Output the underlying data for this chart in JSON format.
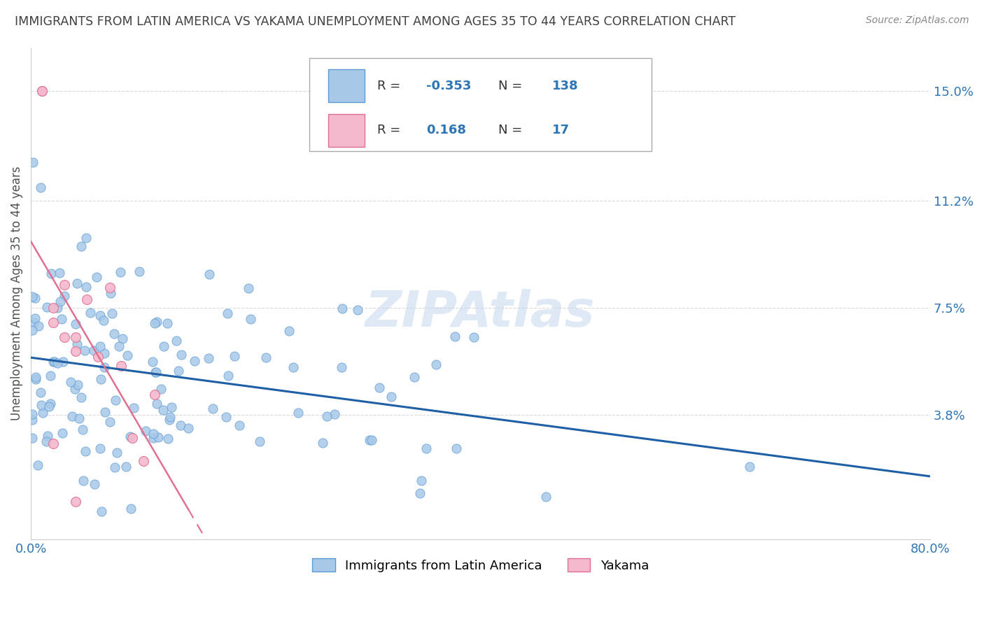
{
  "title": "IMMIGRANTS FROM LATIN AMERICA VS YAKAMA UNEMPLOYMENT AMONG AGES 35 TO 44 YEARS CORRELATION CHART",
  "source": "Source: ZipAtlas.com",
  "ylabel": "Unemployment Among Ages 35 to 44 years",
  "legend_label_1": "Immigrants from Latin America",
  "legend_label_2": "Yakama",
  "R1": -0.353,
  "N1": 138,
  "R2": 0.168,
  "N2": 17,
  "xlim": [
    0.0,
    0.8
  ],
  "ylim": [
    -0.005,
    0.165
  ],
  "yticks": [
    0.038,
    0.075,
    0.112,
    0.15
  ],
  "ytick_labels": [
    "3.8%",
    "7.5%",
    "11.2%",
    "15.0%"
  ],
  "color_blue": "#a8c8e8",
  "color_blue_edge": "#5b9bd5",
  "color_pink": "#f4b8cc",
  "color_pink_edge": "#e07090",
  "color_trendline_blue": "#1f5fa6",
  "color_trendline_pink": "#e07090",
  "watermark": "ZIPAtlas",
  "background_color": "#ffffff",
  "grid_color": "#d0d0d0",
  "title_color": "#404040",
  "label_color": "#2e75b6",
  "seed": 12
}
